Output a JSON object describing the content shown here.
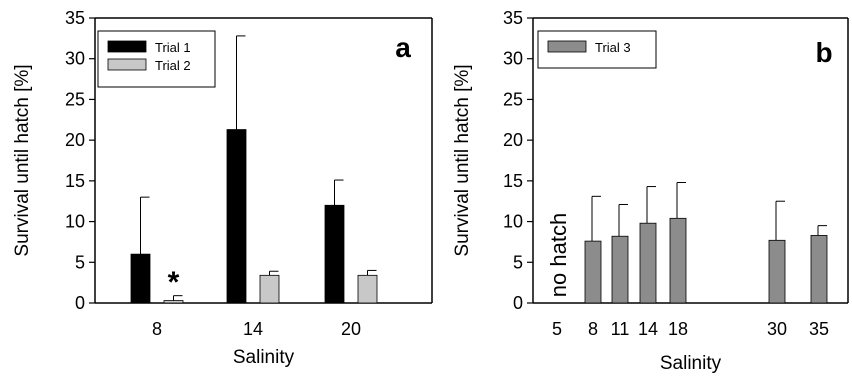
{
  "chart_data": [
    {
      "type": "bar",
      "panel_label": "a",
      "ylabel": "Survival until hatch [%]",
      "xlabel": "Salinity",
      "ylim": [
        0,
        35
      ],
      "yticks": [
        0,
        5,
        10,
        15,
        20,
        25,
        30,
        35
      ],
      "categories": [
        "8",
        "14",
        "20"
      ],
      "legend_position": "top-left",
      "series": [
        {
          "name": "Trial 1",
          "color": "#000000",
          "values": [
            6.0,
            21.3,
            12.0
          ],
          "errors": [
            7.0,
            11.5,
            3.1
          ]
        },
        {
          "name": "Trial 2",
          "color": "#c8c8c8",
          "values": [
            0.3,
            3.4,
            3.4
          ],
          "errors": [
            0.6,
            0.5,
            0.6
          ]
        }
      ],
      "annotations": [
        {
          "text": "*",
          "category": "8",
          "series": "Trial 2"
        }
      ]
    },
    {
      "type": "bar",
      "panel_label": "b",
      "ylabel": "Survival until hatch [%]",
      "xlabel": "Salinity",
      "ylim": [
        0,
        35
      ],
      "yticks": [
        0,
        5,
        10,
        15,
        20,
        25,
        30,
        35
      ],
      "x_ticks": [
        5,
        8,
        11,
        14,
        18,
        30,
        35
      ],
      "legend_position": "top-left",
      "series": [
        {
          "name": "Trial 3",
          "color": "#8c8c8c",
          "points": [
            {
              "x": 8,
              "value": 7.6,
              "error": 5.5
            },
            {
              "x": 11,
              "value": 8.2,
              "error": 3.9
            },
            {
              "x": 14,
              "value": 9.8,
              "error": 4.5
            },
            {
              "x": 18,
              "value": 10.4,
              "error": 4.4
            },
            {
              "x": 30,
              "value": 7.7,
              "error": 4.8
            },
            {
              "x": 35,
              "value": 8.3,
              "error": 1.2
            }
          ]
        }
      ],
      "annotations": [
        {
          "text": "no hatch",
          "x": 5
        }
      ]
    }
  ]
}
